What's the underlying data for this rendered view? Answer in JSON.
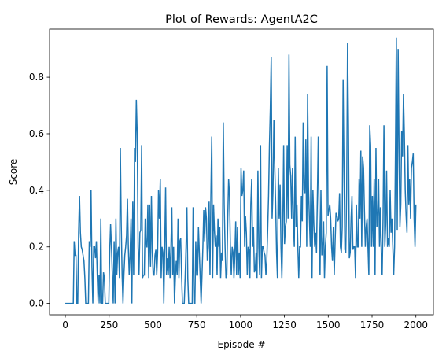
{
  "colors": {
    "line": "#1f77b4",
    "axes": "#000000",
    "background": "#ffffff"
  },
  "chart_data": {
    "type": "line",
    "title": "Plot of Rewards: AgentA2C",
    "xlabel": "Episode #",
    "ylabel": "Score",
    "xlim": [
      -90,
      2100
    ],
    "ylim": [
      -0.04,
      0.97
    ],
    "xticks": [
      0,
      250,
      500,
      750,
      1000,
      1250,
      1500,
      1750,
      2000
    ],
    "yticks": [
      0.0,
      0.2,
      0.4,
      0.6,
      0.8
    ],
    "ytick_labels": [
      "0.0",
      "0.2",
      "0.4",
      "0.6",
      "0.8"
    ],
    "grid": false,
    "series": [
      {
        "values": [
          0,
          0,
          0,
          0,
          0,
          0,
          0,
          0,
          0,
          0,
          0.22,
          0.17,
          0.17,
          0,
          0,
          0.25,
          0.38,
          0.25,
          0.2,
          0.19,
          0.17,
          0.15,
          0.09,
          0,
          0,
          0,
          0,
          0.22,
          0.2,
          0.4,
          0.13,
          0,
          0.2,
          0.2,
          0.16,
          0.22,
          0.1,
          0,
          0.1,
          0,
          0.3,
          0,
          0,
          0.11,
          0.09,
          0,
          0,
          0,
          0,
          0,
          0.18,
          0.28,
          0.2,
          0.1,
          0,
          0.22,
          0,
          0.3,
          0.1,
          0.18,
          0.2,
          0.09,
          0.55,
          0.28,
          0.1,
          0,
          0.1,
          0.17,
          0.2,
          0.24,
          0.37,
          0.2,
          0.1,
          0.17,
          0.3,
          0,
          0.36,
          0.1,
          0.55,
          0.5,
          0.72,
          0.6,
          0.2,
          0.1,
          0.25,
          0.26,
          0.56,
          0.09,
          0.1,
          0.1,
          0.3,
          0.2,
          0.2,
          0.35,
          0.09,
          0.35,
          0.13,
          0.38,
          0.18,
          0.1,
          0.1,
          0.17,
          0.19,
          0.1,
          0.18,
          0.4,
          0.3,
          0.44,
          0.09,
          0.2,
          0.18,
          0,
          0.2,
          0.41,
          0.1,
          0.16,
          0.1,
          0.2,
          0.09,
          0.2,
          0.34,
          0.1,
          0.2,
          0,
          0.09,
          0.15,
          0.1,
          0.3,
          0.09,
          0.22,
          0.23,
          0.1,
          0,
          0,
          0,
          0.09,
          0.2,
          0.34,
          0.09,
          0,
          0,
          0,
          0,
          0,
          0.34,
          0,
          0,
          0.22,
          0.1,
          0.1,
          0.27,
          0.18,
          0.09,
          0,
          0.1,
          0.2,
          0.33,
          0.22,
          0.34,
          0.3,
          0.15,
          0.2,
          0.36,
          0.1,
          0.38,
          0.59,
          0.09,
          0.35,
          0.26,
          0.2,
          0.24,
          0.1,
          0.3,
          0.2,
          0.27,
          0.09,
          0.18,
          0.15,
          0.64,
          0.35,
          0.2,
          0.09,
          0.1,
          0.3,
          0.44,
          0.38,
          0.2,
          0.1,
          0.2,
          0.18,
          0.09,
          0.17,
          0.29,
          0.1,
          0.27,
          0.1,
          0.18,
          0.09,
          0.48,
          0.38,
          0.4,
          0.47,
          0.2,
          0.31,
          0.25,
          0.1,
          0.2,
          0.19,
          0.09,
          0.35,
          0.44,
          0.2,
          0.27,
          0.11,
          0.12,
          0.18,
          0.09,
          0.47,
          0.2,
          0.1,
          0.56,
          0.09,
          0.2,
          0.2,
          0.18,
          0.17,
          0.1,
          0.15,
          0.26,
          0.38,
          0.56,
          0.69,
          0.87,
          0.3,
          0.4,
          0.65,
          0.48,
          0.35,
          0.18,
          0.09,
          0.48,
          0.3,
          0.42,
          0.2,
          0.09,
          0.26,
          0.56,
          0.21,
          0.27,
          0.29,
          0.56,
          0.3,
          0.88,
          0.49,
          0.45,
          0.3,
          0.48,
          0.29,
          0.2,
          0.59,
          0.27,
          0.35,
          0.2,
          0.09,
          0.2,
          0.2,
          0.38,
          0.29,
          0.64,
          0.4,
          0.39,
          0.58,
          0.2,
          0.74,
          0.41,
          0.3,
          0.2,
          0.59,
          0.09,
          0.4,
          0.28,
          0.2,
          0.25,
          0.18,
          0.38,
          0.59,
          0.3,
          0.1,
          0.4,
          0.17,
          0.2,
          0.29,
          0.09,
          0.2,
          0.25,
          0.84,
          0.31,
          0.33,
          0.35,
          0.3,
          0.2,
          0.15,
          0.27,
          0.1,
          0.22,
          0.32,
          0.31,
          0.29,
          0.3,
          0.39,
          0.2,
          0.18,
          0.27,
          0.79,
          0.48,
          0.19,
          0.18,
          0.4,
          0.92,
          0.63,
          0.16,
          0.18,
          0.3,
          0.38,
          0.19,
          0.2,
          0.2,
          0.09,
          0.35,
          0.2,
          0.2,
          0.44,
          0.3,
          0.54,
          0.2,
          0.52,
          0.48,
          0.33,
          0.2,
          0.27,
          0.3,
          0.2,
          0.1,
          0.63,
          0.56,
          0.2,
          0.38,
          0.2,
          0.44,
          0.1,
          0.55,
          0.27,
          0.3,
          0.44,
          0.2,
          0.34,
          0.18,
          0.1,
          0.3,
          0.63,
          0.2,
          0.28,
          0.47,
          0.2,
          0.23,
          0.2,
          0.4,
          0.25,
          0.3,
          0.2,
          0.1,
          0.2,
          0.55,
          0.94,
          0.26,
          0.9,
          0.55,
          0.27,
          0.35,
          0.61,
          0.52,
          0.74,
          0.6,
          0.4,
          0.31,
          0.25,
          0.56,
          0.35,
          0.44,
          0.3,
          0.48,
          0.5,
          0.53,
          0.3,
          0.2,
          0.35
        ]
      }
    ]
  }
}
